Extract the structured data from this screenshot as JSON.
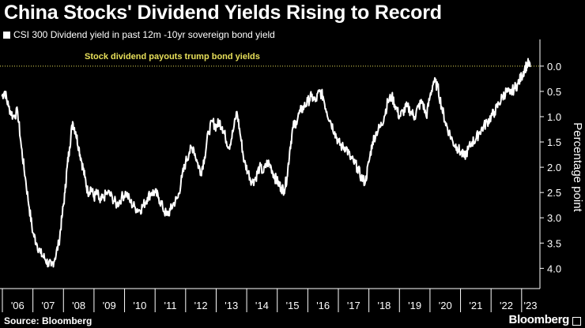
{
  "title": "China Stocks' Dividend Yields Rising to Record",
  "source": "Source: Bloomberg",
  "brand": "Bloomberg",
  "colors": {
    "background": "#000000",
    "line": "#ffffff",
    "annotation": "#e8e05a",
    "axis": "#ffffff"
  },
  "chart_data": {
    "type": "line",
    "title": "China Stocks' Dividend Yields Rising to Record",
    "ylabel": "Percentage point",
    "xlabel": "",
    "ylim": [
      -4.4,
      0.45
    ],
    "y_inverted": true,
    "y_ticks": [
      0.0,
      -0.5,
      -1.0,
      -1.5,
      -2.0,
      -2.5,
      -3.0,
      -3.5,
      -4.0
    ],
    "y_tick_labels": [
      "0.0",
      "0.5",
      "1.0",
      "1.5",
      "2.0",
      "2.5",
      "3.0",
      "3.5",
      "4.0"
    ],
    "x_tick_labels": [
      "'06",
      "'07",
      "'08",
      "'09",
      "'10",
      "'11",
      "'12",
      "'13",
      "'14",
      "'15",
      "'16",
      "'17",
      "'18",
      "'19",
      "'20",
      "'21",
      "'22",
      "'23"
    ],
    "annotation": "Stock dividend payouts trump bond yields",
    "reference_line": 0.0,
    "series": [
      {
        "name": "CSI 300 Dividend yield in past 12m -10yr sovereign bond yield",
        "x": [
          2005.98,
          2006.08,
          2006.2,
          2006.35,
          2006.5,
          2006.62,
          2006.75,
          2006.88,
          2007.0,
          2007.12,
          2007.25,
          2007.38,
          2007.5,
          2007.6,
          2007.72,
          2007.85,
          2007.95,
          2008.05,
          2008.12,
          2008.2,
          2008.3,
          2008.4,
          2008.5,
          2008.6,
          2008.7,
          2008.8,
          2008.9,
          2009.0,
          2009.1,
          2009.2,
          2009.3,
          2009.45,
          2009.6,
          2009.75,
          2009.9,
          2010.05,
          2010.2,
          2010.35,
          2010.5,
          2010.62,
          2010.75,
          2010.88,
          2011.0,
          2011.12,
          2011.25,
          2011.38,
          2011.5,
          2011.62,
          2011.75,
          2011.88,
          2012.0,
          2012.12,
          2012.25,
          2012.38,
          2012.5,
          2012.62,
          2012.75,
          2012.88,
          2013.0,
          2013.1,
          2013.2,
          2013.3,
          2013.42,
          2013.55,
          2013.68,
          2013.8,
          2013.92,
          2014.05,
          2014.18,
          2014.3,
          2014.42,
          2014.55,
          2014.68,
          2014.8,
          2014.92,
          2015.02,
          2015.12,
          2015.22,
          2015.32,
          2015.42,
          2015.52,
          2015.62,
          2015.75,
          2015.88,
          2016.0,
          2016.12,
          2016.25,
          2016.38,
          2016.5,
          2016.62,
          2016.75,
          2016.88,
          2017.0,
          2017.12,
          2017.25,
          2017.38,
          2017.5,
          2017.62,
          2017.75,
          2017.88,
          2018.0,
          2018.12,
          2018.25,
          2018.38,
          2018.5,
          2018.62,
          2018.75,
          2018.88,
          2019.0,
          2019.12,
          2019.25,
          2019.38,
          2019.5,
          2019.62,
          2019.75,
          2019.88,
          2020.0,
          2020.12,
          2020.25,
          2020.38,
          2020.5,
          2020.62,
          2020.75,
          2020.88,
          2021.0,
          2021.12,
          2021.25,
          2021.38,
          2021.5,
          2021.62,
          2021.75,
          2021.88,
          2022.0,
          2022.12,
          2022.25,
          2022.38,
          2022.5,
          2022.62,
          2022.75,
          2022.88,
          2023.0,
          2023.1,
          2023.2,
          2023.28
        ],
        "values": [
          -0.6,
          -0.5,
          -0.8,
          -1.0,
          -0.9,
          -1.6,
          -2.2,
          -2.8,
          -3.3,
          -3.5,
          -3.7,
          -3.8,
          -3.9,
          -3.95,
          -3.8,
          -3.5,
          -3.0,
          -2.5,
          -2.0,
          -1.6,
          -1.1,
          -1.3,
          -1.6,
          -1.9,
          -2.2,
          -2.5,
          -2.4,
          -2.6,
          -2.5,
          -2.7,
          -2.6,
          -2.5,
          -2.6,
          -2.75,
          -2.6,
          -2.5,
          -2.7,
          -2.8,
          -2.85,
          -2.75,
          -2.6,
          -2.5,
          -2.5,
          -2.6,
          -2.8,
          -2.95,
          -2.85,
          -2.7,
          -2.6,
          -2.2,
          -1.9,
          -1.7,
          -1.6,
          -1.9,
          -2.1,
          -1.8,
          -1.3,
          -1.1,
          -1.2,
          -1.1,
          -1.2,
          -1.4,
          -1.6,
          -1.3,
          -0.9,
          -1.4,
          -1.9,
          -2.1,
          -2.3,
          -2.2,
          -2.0,
          -2.1,
          -1.9,
          -2.0,
          -2.2,
          -2.3,
          -2.4,
          -2.45,
          -2.2,
          -1.6,
          -1.2,
          -1.1,
          -0.9,
          -0.8,
          -0.7,
          -0.6,
          -0.7,
          -0.5,
          -0.6,
          -0.9,
          -1.1,
          -1.3,
          -1.5,
          -1.6,
          -1.6,
          -1.8,
          -1.9,
          -2.0,
          -2.2,
          -2.3,
          -1.9,
          -1.5,
          -1.3,
          -1.2,
          -1.0,
          -0.7,
          -0.6,
          -0.8,
          -1.0,
          -0.9,
          -0.8,
          -0.9,
          -1.0,
          -0.8,
          -0.7,
          -1.0,
          -0.6,
          -0.3,
          -0.4,
          -0.8,
          -1.1,
          -1.3,
          -1.5,
          -1.6,
          -1.7,
          -1.8,
          -1.65,
          -1.5,
          -1.45,
          -1.3,
          -1.2,
          -1.1,
          -1.0,
          -0.9,
          -0.75,
          -0.6,
          -0.5,
          -0.55,
          -0.45,
          -0.35,
          -0.2,
          -0.05,
          0.05,
          -0.02
        ]
      }
    ]
  }
}
